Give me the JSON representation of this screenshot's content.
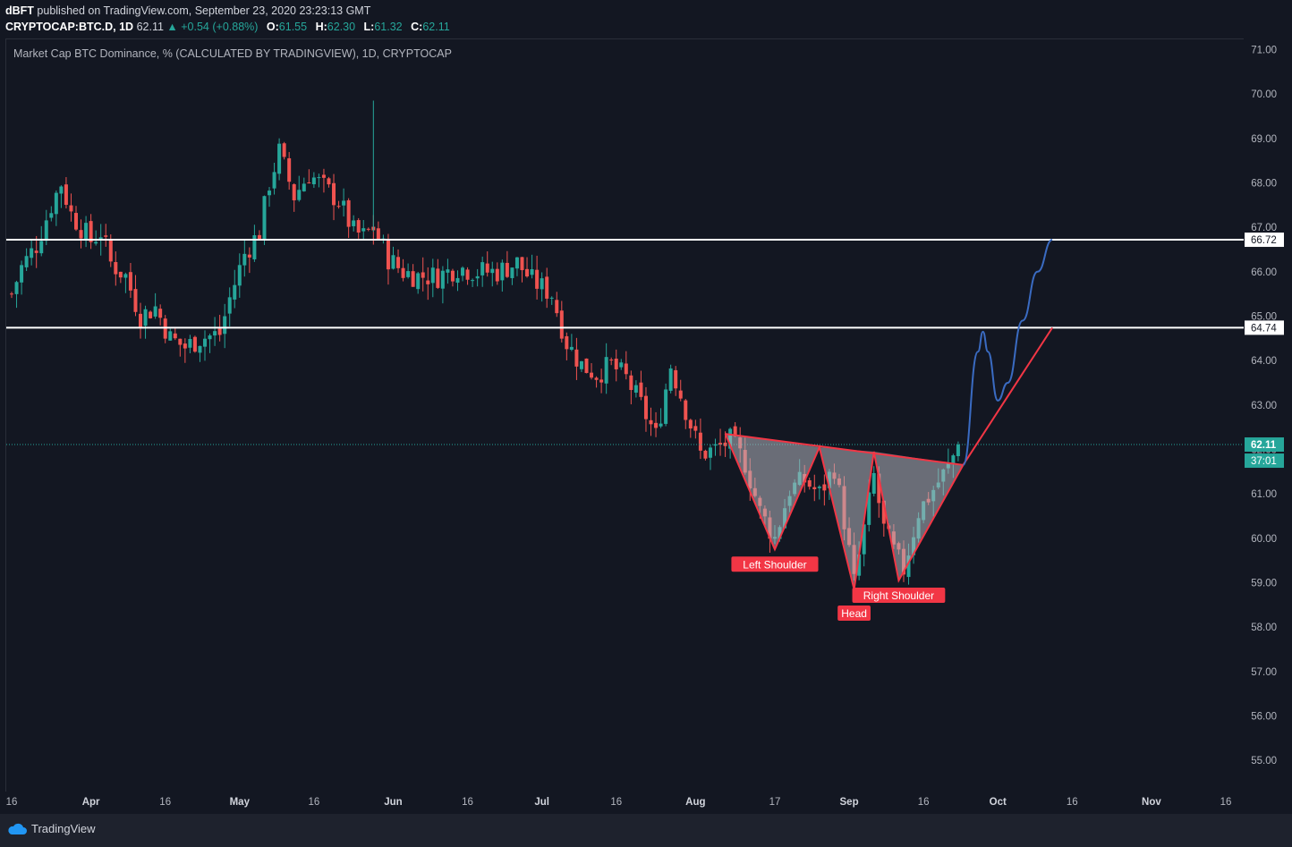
{
  "header": {
    "author": "dBFT",
    "published_text": "published on TradingView.com, September 23, 2020 23:23:13 GMT",
    "symbol": "CRYPTOCAP:BTC.D, 1D",
    "last": "62.11",
    "change": "▲ +0.54 (+0.88%)",
    "o_label": "O:",
    "o": "61.55",
    "h_label": "H:",
    "h": "62.30",
    "l_label": "L:",
    "l": "61.32",
    "c_label": "C:",
    "c": "62.11"
  },
  "chart_title": "Market Cap BTC Dominance, % (CALCULATED BY TRADINGVIEW), 1D, CRYPTOCAP",
  "footer": {
    "brand": "TradingView"
  },
  "colors": {
    "background": "#131722",
    "up": "#26a69a",
    "down": "#ef5350",
    "pattern": "#f23645",
    "projection": "#3a6bc2",
    "level": "#ffffff"
  },
  "chart_data": {
    "type": "candlestick",
    "title": "Market Cap BTC Dominance, % (CALCULATED BY TRADINGVIEW), 1D, CRYPTOCAP",
    "y_ticks": [
      "71.00",
      "70.00",
      "69.00",
      "68.00",
      "67.00",
      "66.00",
      "65.00",
      "64.00",
      "63.00",
      "62.00",
      "61.00",
      "60.00",
      "59.00",
      "58.00",
      "57.00",
      "56.00",
      "55.00"
    ],
    "ylim": [
      54.3,
      71.25
    ],
    "x_ticks": [
      "16",
      "Apr",
      "16",
      "May",
      "16",
      "Jun",
      "16",
      "Jul",
      "16",
      "Aug",
      "17",
      "Sep",
      "16",
      "Oct",
      "16",
      "Nov",
      "16"
    ],
    "xlim": [
      "2020-03-16",
      "2020-11-16"
    ],
    "horizontal_levels": [
      {
        "value": 66.72,
        "label": "66.72"
      },
      {
        "value": 64.74,
        "label": "64.74"
      }
    ],
    "last_price": {
      "value": 62.11,
      "label": "62.11",
      "countdown": "37:01"
    },
    "close_path": [
      [
        "2020-03-16",
        65.5
      ],
      [
        "2020-03-18",
        66.1
      ],
      [
        "2020-03-21",
        66.6
      ],
      [
        "2020-03-24",
        67.5
      ],
      [
        "2020-03-26",
        68.0
      ],
      [
        "2020-03-28",
        67.3
      ],
      [
        "2020-04-01",
        66.7
      ],
      [
        "2020-04-03",
        66.9
      ],
      [
        "2020-04-05",
        66.2
      ],
      [
        "2020-04-08",
        65.9
      ],
      [
        "2020-04-11",
        65.0
      ],
      [
        "2020-04-14",
        65.2
      ],
      [
        "2020-04-17",
        64.5
      ],
      [
        "2020-04-20",
        64.3
      ],
      [
        "2020-04-23",
        64.5
      ],
      [
        "2020-04-27",
        64.6
      ],
      [
        "2020-04-29",
        65.4
      ],
      [
        "2020-05-02",
        66.4
      ],
      [
        "2020-05-05",
        66.9
      ],
      [
        "2020-05-07",
        68.0
      ],
      [
        "2020-05-09",
        68.7
      ],
      [
        "2020-05-12",
        67.7
      ],
      [
        "2020-05-15",
        68.2
      ],
      [
        "2020-05-18",
        67.9
      ],
      [
        "2020-05-21",
        67.6
      ],
      [
        "2020-05-24",
        66.9
      ],
      [
        "2020-05-26",
        66.8
      ],
      [
        "2020-05-28",
        67.0
      ],
      [
        "2020-05-31",
        66.3
      ],
      [
        "2020-06-03",
        66.0
      ],
      [
        "2020-06-06",
        65.9
      ],
      [
        "2020-06-10",
        65.9
      ],
      [
        "2020-06-14",
        66.1
      ],
      [
        "2020-06-18",
        66.0
      ],
      [
        "2020-06-22",
        66.0
      ],
      [
        "2020-06-26",
        66.2
      ],
      [
        "2020-06-29",
        65.8
      ],
      [
        "2020-07-03",
        65.5
      ],
      [
        "2020-07-06",
        64.4
      ],
      [
        "2020-07-09",
        63.9
      ],
      [
        "2020-07-12",
        63.7
      ],
      [
        "2020-07-15",
        63.9
      ],
      [
        "2020-07-18",
        63.6
      ],
      [
        "2020-07-21",
        63.0
      ],
      [
        "2020-07-24",
        62.3
      ],
      [
        "2020-07-27",
        63.9
      ],
      [
        "2020-07-30",
        62.9
      ],
      [
        "2020-08-02",
        61.9
      ],
      [
        "2020-08-05",
        62.0
      ],
      [
        "2020-08-08",
        62.2
      ],
      [
        "2020-08-11",
        61.7
      ],
      [
        "2020-08-14",
        60.6
      ],
      [
        "2020-08-17",
        60.0
      ],
      [
        "2020-08-20",
        61.1
      ],
      [
        "2020-08-23",
        61.3
      ],
      [
        "2020-08-26",
        61.0
      ],
      [
        "2020-08-29",
        61.6
      ],
      [
        "2020-08-31",
        60.4
      ],
      [
        "2020-09-02",
        59.0
      ],
      [
        "2020-09-04",
        60.2
      ],
      [
        "2020-09-06",
        61.4
      ],
      [
        "2020-09-08",
        60.2
      ],
      [
        "2020-09-10",
        59.7
      ],
      [
        "2020-09-12",
        59.3
      ],
      [
        "2020-09-15",
        60.6
      ],
      [
        "2020-09-18",
        61.1
      ],
      [
        "2020-09-21",
        61.6
      ],
      [
        "2020-09-23",
        62.11
      ]
    ],
    "pattern": {
      "name": "Inverse Head and Shoulders",
      "labels": [
        {
          "text": "Left Shoulder",
          "date": "2020-08-17",
          "value": 59.75
        },
        {
          "text": "Head",
          "date": "2020-09-02",
          "value": 58.85
        },
        {
          "text": "Right Shoulder",
          "date": "2020-09-11",
          "value": 59.05
        }
      ],
      "points": [
        [
          "2020-08-07",
          62.35
        ],
        [
          "2020-08-17",
          59.75
        ],
        [
          "2020-08-26",
          62.05
        ],
        [
          "2020-09-02",
          58.85
        ],
        [
          "2020-09-06",
          61.95
        ],
        [
          "2020-09-11",
          59.05
        ],
        [
          "2020-09-24",
          61.65
        ]
      ],
      "neckline": [
        [
          "2020-08-07",
          62.35
        ],
        [
          "2020-09-24",
          61.65
        ]
      ]
    },
    "projection_line": [
      [
        "2020-09-24",
        61.65
      ],
      [
        "2020-10-12",
        64.74
      ]
    ],
    "projection_curve": [
      [
        "2020-09-24",
        61.65
      ],
      [
        "2020-09-27",
        64.2
      ],
      [
        "2020-09-28",
        64.65
      ],
      [
        "2020-09-29",
        64.2
      ],
      [
        "2020-10-01",
        63.1
      ],
      [
        "2020-10-03",
        63.5
      ],
      [
        "2020-10-06",
        64.9
      ],
      [
        "2020-10-09",
        66.0
      ],
      [
        "2020-10-12",
        66.72
      ]
    ]
  }
}
